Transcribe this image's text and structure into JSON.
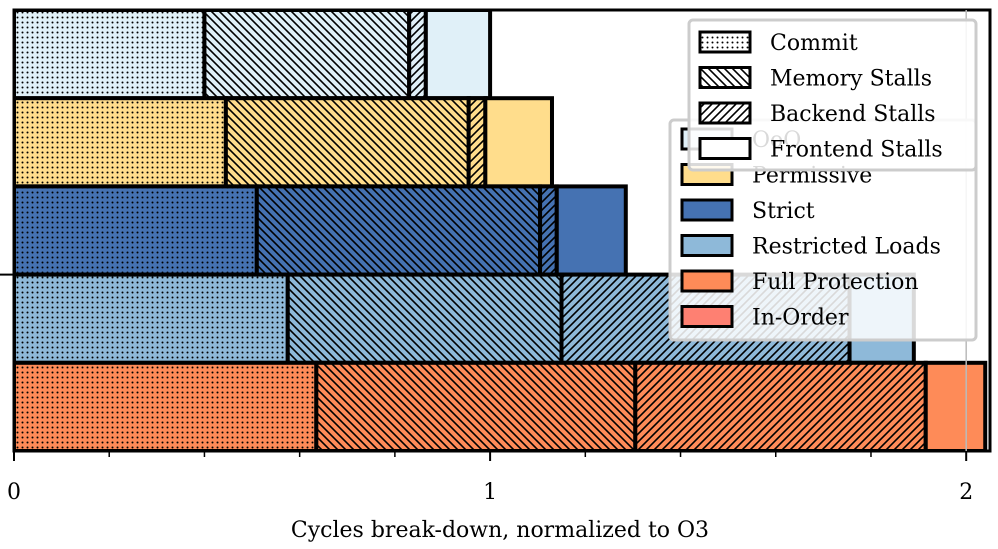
{
  "chart_data": {
    "type": "bar",
    "orientation": "horizontal",
    "stacked": true,
    "xlabel": "Cycles break-down, normalized to O3",
    "ylabel": "",
    "xlim": [
      0,
      2.05
    ],
    "xticks": [
      0,
      1,
      2
    ],
    "xtick_labels": [
      "0",
      "1",
      "2"
    ],
    "grid": false,
    "configs": [
      {
        "name": "OoO",
        "color": "#e0f0f8"
      },
      {
        "name": "Permissive",
        "color": "#ffdd8c"
      },
      {
        "name": "Strict",
        "color": "#4572b2"
      },
      {
        "name": "Restricted Loads",
        "color": "#8eb9d9"
      },
      {
        "name": "Full Protection",
        "color": "#fe8b58"
      },
      {
        "name": "In-Order",
        "color": "#fe8072"
      }
    ],
    "components": [
      {
        "name": "Commit",
        "pattern": "dots"
      },
      {
        "name": "Memory Stalls",
        "pattern": "backslash"
      },
      {
        "name": "Backend Stalls",
        "pattern": "slash"
      },
      {
        "name": "Frontend Stalls",
        "pattern": "none"
      }
    ],
    "bars": [
      {
        "config": "OoO",
        "values": [
          0.4,
          0.43,
          0.035,
          0.135
        ]
      },
      {
        "config": "Permissive",
        "values": [
          0.445,
          0.51,
          0.035,
          0.14
        ]
      },
      {
        "config": "Strict",
        "values": [
          0.51,
          0.595,
          0.035,
          0.145
        ]
      },
      {
        "config": "Restricted Loads",
        "values": [
          0.575,
          0.575,
          0.605,
          0.135
        ]
      },
      {
        "config": "Full Protection",
        "values": [
          0.635,
          0.67,
          0.61,
          0.125
        ]
      }
    ]
  }
}
